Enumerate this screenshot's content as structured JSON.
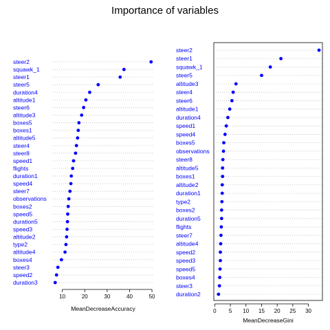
{
  "title": "Importance of variables",
  "colors": {
    "labels": "#0000ff",
    "points": "#0000ff",
    "guides": "#bbbbbb",
    "frame": "#000000"
  },
  "chart_data": [
    {
      "type": "scatter",
      "style": "dotchart",
      "framed": false,
      "xlabel": "MeanDecreaseAccuracy",
      "xlim": [
        5.8,
        50.6
      ],
      "xticks": [
        10,
        20,
        30,
        40,
        50
      ],
      "categories": [
        "steer2",
        "squawk_1",
        "steer1",
        "steer5",
        "duration4",
        "altitude1",
        "steer6",
        "altitude3",
        "boxes5",
        "boxes1",
        "altitude5",
        "steer4",
        "steer8",
        "speed1",
        "flights",
        "duration1",
        "speed4",
        "steer7",
        "observations",
        "boxes2",
        "speed5",
        "duration5",
        "speed3",
        "altitude2",
        "type2",
        "altitude4",
        "boxes4",
        "steer3",
        "speed2",
        "duration3"
      ],
      "values": [
        49.6,
        37.5,
        35.8,
        26.0,
        22.2,
        20.5,
        19.5,
        18.6,
        17.4,
        17.1,
        16.8,
        16.3,
        15.9,
        15.0,
        14.6,
        14.0,
        13.8,
        13.4,
        12.9,
        12.6,
        12.4,
        12.3,
        12.1,
        11.9,
        11.6,
        11.2,
        9.6,
        8.0,
        7.4,
        6.8
      ]
    },
    {
      "type": "scatter",
      "style": "dotchart",
      "framed": true,
      "xlabel": "MeanDecreaseGini",
      "xlim": [
        -0.3,
        34.5
      ],
      "xticks": [
        0,
        5,
        10,
        15,
        20,
        25,
        30
      ],
      "categories": [
        "steer2",
        "steer1",
        "squawk_1",
        "steer5",
        "altitude3",
        "steer4",
        "steer6",
        "altitude1",
        "duration4",
        "speed1",
        "speed4",
        "boxes5",
        "observations",
        "steer8",
        "altitude5",
        "boxes1",
        "altitude2",
        "duration1",
        "type2",
        "boxes2",
        "duration5",
        "flights",
        "steer7",
        "altitude4",
        "speed2",
        "speed3",
        "speed5",
        "boxes4",
        "steer3",
        "duration2"
      ],
      "values": [
        33.4,
        21.2,
        17.8,
        15.0,
        6.8,
        5.9,
        5.5,
        4.8,
        4.2,
        3.7,
        3.3,
        2.9,
        2.8,
        2.6,
        2.5,
        2.5,
        2.4,
        2.4,
        2.3,
        2.2,
        2.2,
        2.1,
        2.0,
        1.9,
        1.8,
        1.8,
        1.7,
        1.6,
        1.5,
        1.2
      ]
    }
  ]
}
